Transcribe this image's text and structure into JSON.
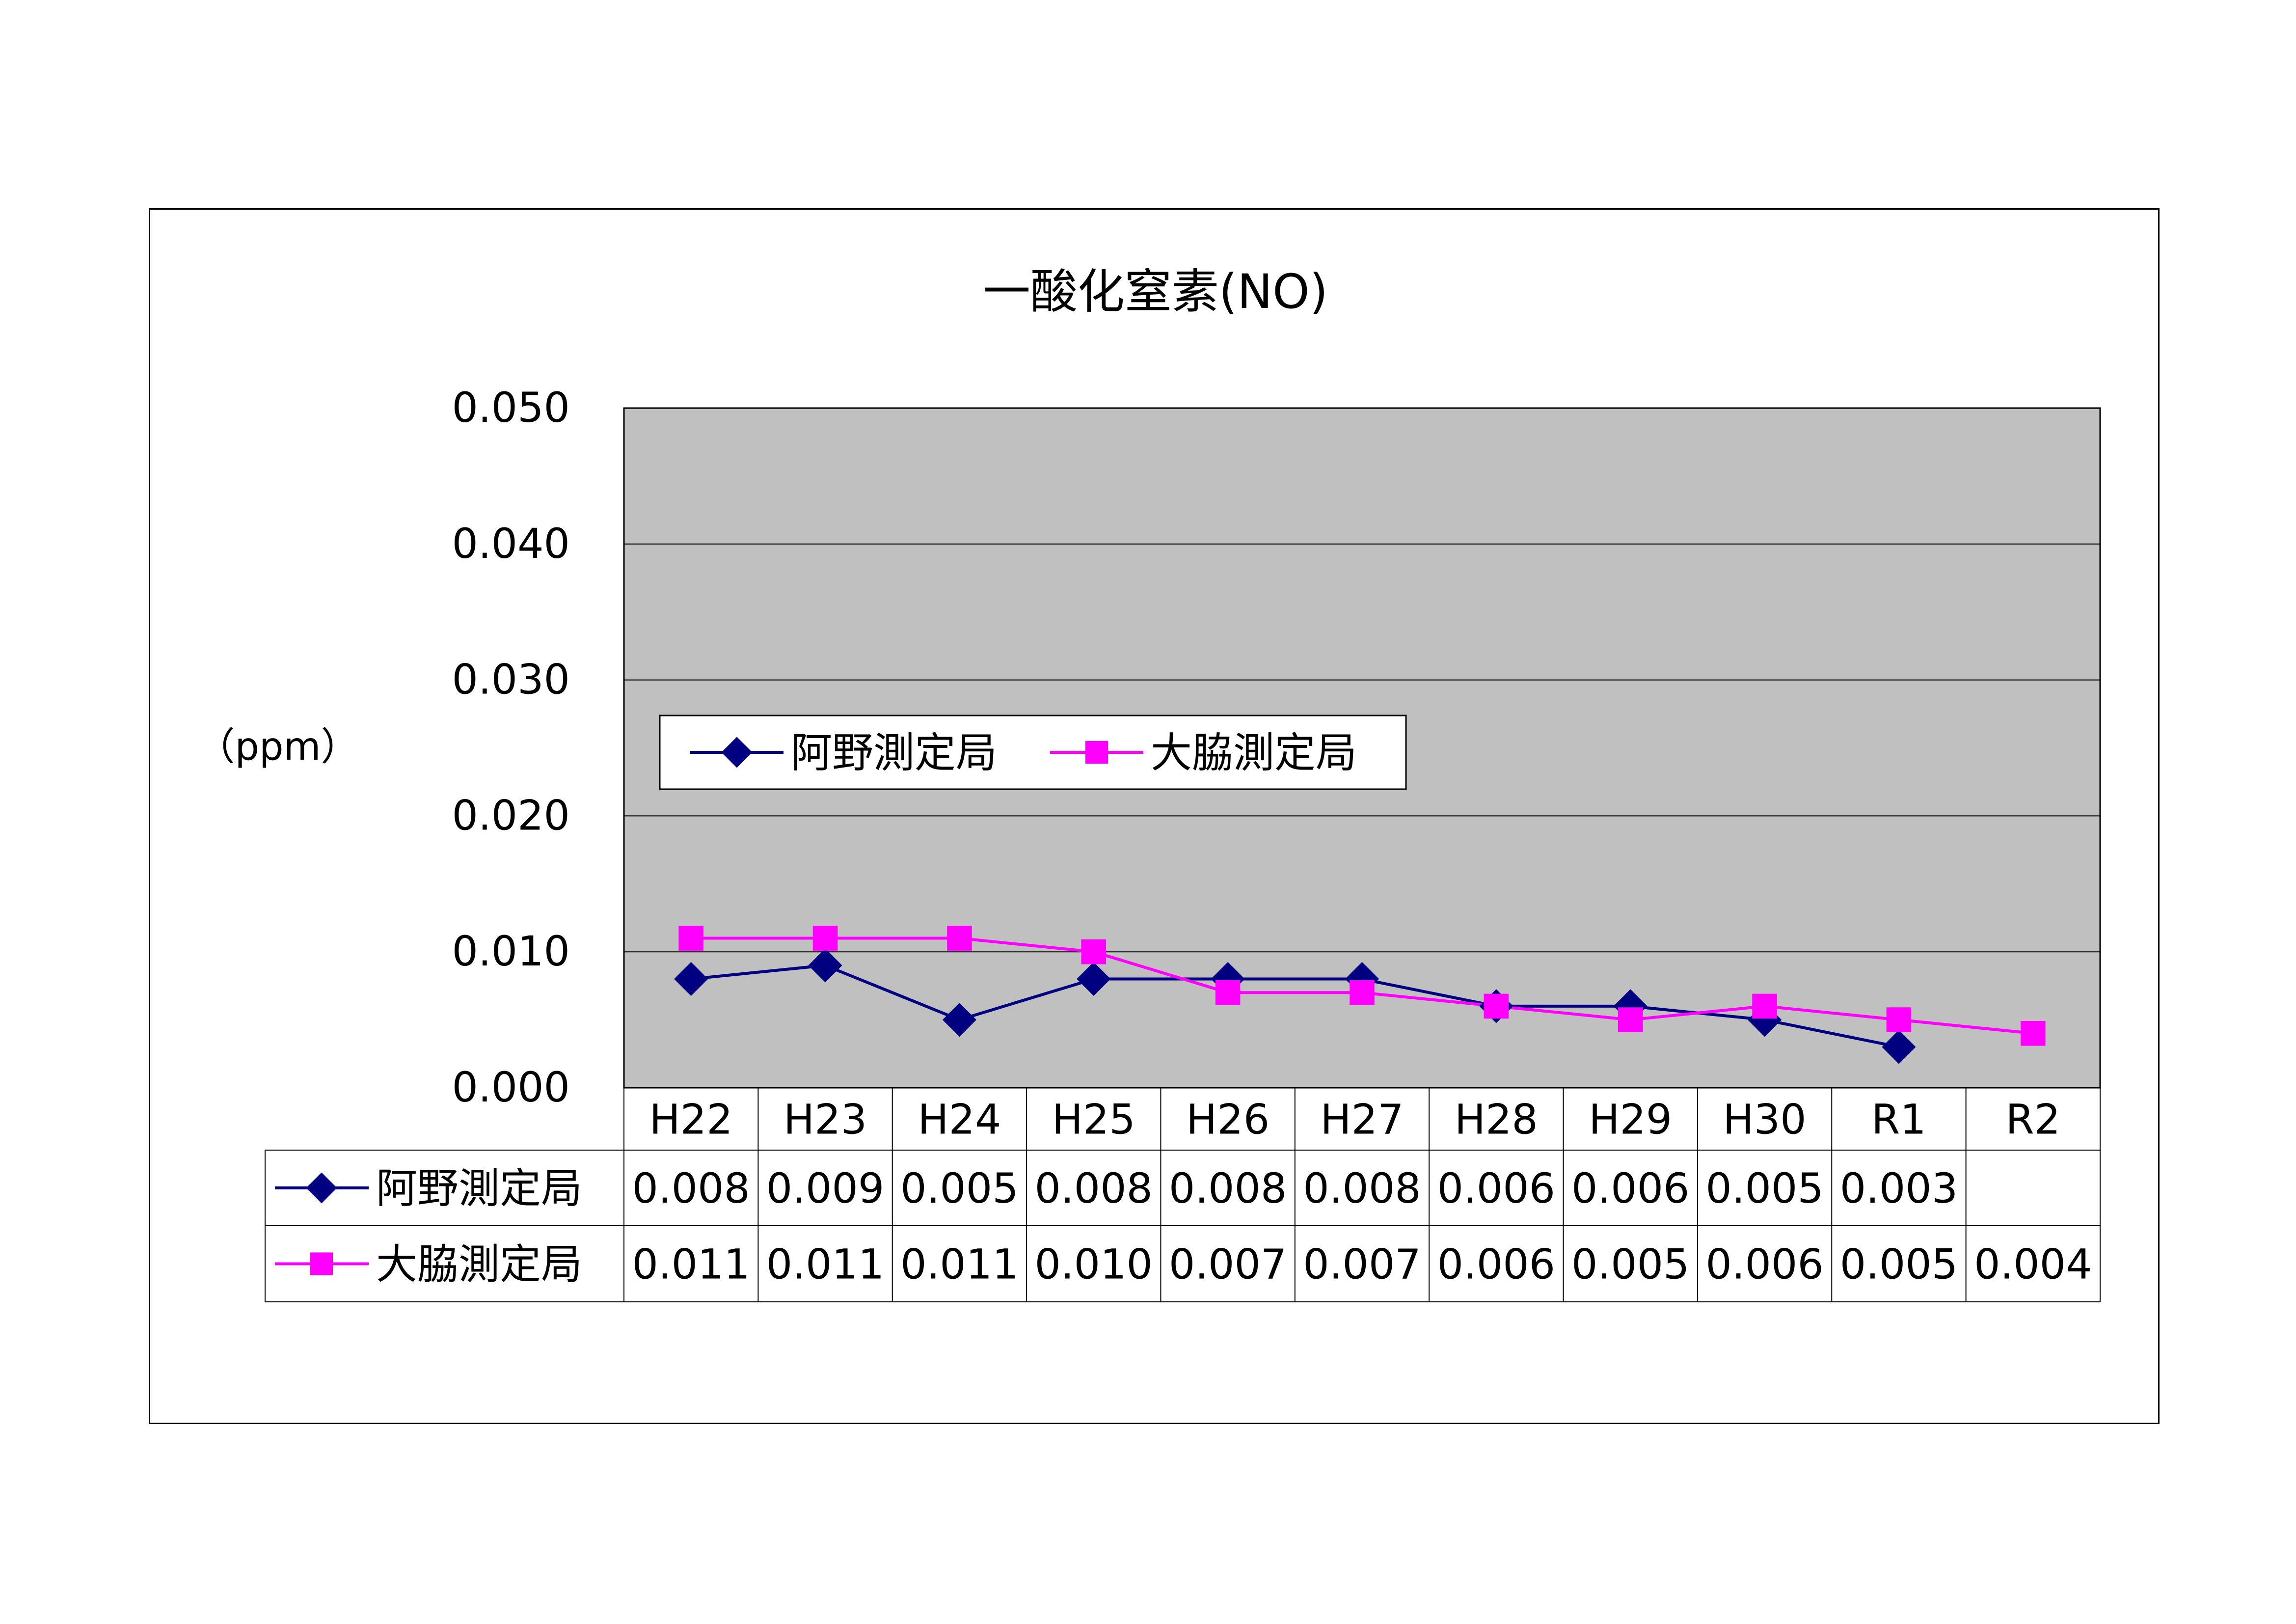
{
  "chart_data": {
    "type": "line",
    "title": "一酸化窒素(NO)",
    "ylabel": "（ppm）",
    "xlabel": "",
    "categories": [
      "H22",
      "H23",
      "H24",
      "H25",
      "H26",
      "H27",
      "H28",
      "H29",
      "H30",
      "R1",
      "R2"
    ],
    "ylim": [
      0,
      0.05
    ],
    "yticks": [
      "0.000",
      "0.010",
      "0.020",
      "0.030",
      "0.040",
      "0.050"
    ],
    "grid": true,
    "legend": "inside-upper-left",
    "series": [
      {
        "name": "阿野測定局",
        "color": "#000080",
        "marker": "diamond",
        "values": [
          0.008,
          0.009,
          0.005,
          0.008,
          0.008,
          0.008,
          0.006,
          0.006,
          0.005,
          0.003,
          null
        ],
        "labels": [
          "0.008",
          "0.009",
          "0.005",
          "0.008",
          "0.008",
          "0.008",
          "0.006",
          "0.006",
          "0.005",
          "0.003",
          ""
        ]
      },
      {
        "name": "大脇測定局",
        "color": "#FF00FF",
        "marker": "square",
        "values": [
          0.011,
          0.011,
          0.011,
          0.01,
          0.007,
          0.007,
          0.006,
          0.005,
          0.006,
          0.005,
          0.004
        ],
        "labels": [
          "0.011",
          "0.011",
          "0.011",
          "0.010",
          "0.007",
          "0.007",
          "0.006",
          "0.005",
          "0.006",
          "0.005",
          "0.004"
        ]
      }
    ],
    "plot_background": "#C0C0C0"
  }
}
